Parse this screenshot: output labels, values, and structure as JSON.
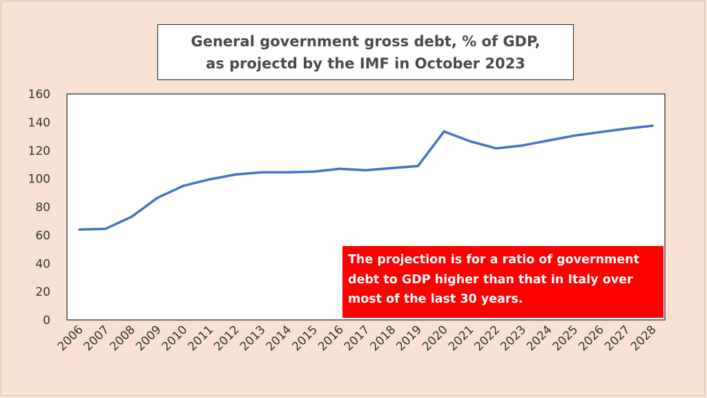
{
  "chart_data": {
    "type": "line",
    "title_lines": [
      "General government gross debt, % of GDP,",
      "as projectd by the IMF in October 2023"
    ],
    "x": [
      "2006",
      "2007",
      "2008",
      "2009",
      "2010",
      "2011",
      "2012",
      "2013",
      "2014",
      "2015",
      "2016",
      "2017",
      "2018",
      "2019",
      "2020",
      "2021",
      "2022",
      "2023",
      "2024",
      "2025",
      "2026",
      "2027",
      "2028"
    ],
    "series": [
      {
        "values": [
          64,
          64.5,
          73,
          86.5,
          95,
          99.5,
          103,
          104.5,
          104.5,
          105,
          107,
          106,
          107.5,
          109,
          133.5,
          126.5,
          121.5,
          123.5,
          127,
          130.5,
          133,
          135.5,
          137.5
        ]
      }
    ],
    "ylim": [
      0,
      160
    ],
    "yticks": [
      0,
      20,
      40,
      60,
      80,
      100,
      120,
      140,
      160
    ],
    "line_color": "#4472c4",
    "grid": false,
    "annotation": {
      "text": "The projection is for a ratio of government\ndebt to GDP higher than that in Italy over\nmost of the last 30 years.",
      "background": "#ff0000",
      "text_color": "#ffffff"
    }
  }
}
